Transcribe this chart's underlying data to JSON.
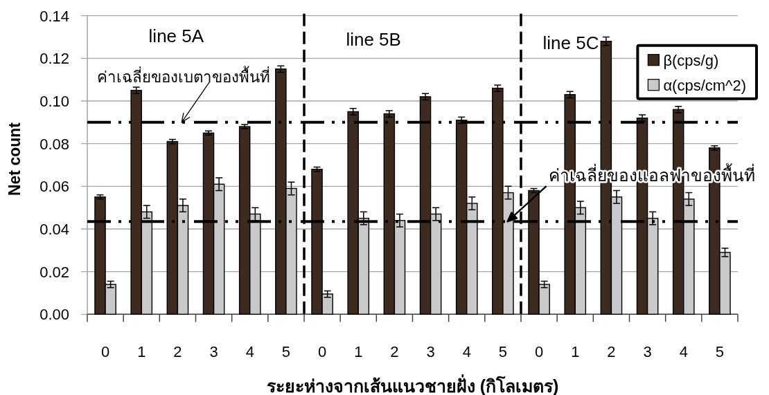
{
  "chart_data": {
    "type": "bar",
    "xlabel": "ระยะห่างจากเส้นแนวชายฝั่ง (กิโลเมตร)",
    "ylabel": "Net count",
    "categories": [
      "0",
      "1",
      "2",
      "3",
      "4",
      "5",
      "0",
      "1",
      "2",
      "3",
      "4",
      "5",
      "0",
      "1",
      "2",
      "3",
      "4",
      "5"
    ],
    "ylim": [
      0,
      0.14
    ],
    "yticks": [
      {
        "value": 0,
        "label": "0.00"
      },
      0.02,
      0.04,
      0.06,
      0.08,
      {
        "value": 0.1,
        "label": "0.10"
      },
      0.12,
      0.14
    ],
    "grid": "y",
    "legend": "top right",
    "series": [
      {
        "name": "β(cps/g)",
        "color": "#3d2b1f",
        "values": [
          0.055,
          0.105,
          0.081,
          0.085,
          0.088,
          0.115,
          0.068,
          0.095,
          0.094,
          0.102,
          0.091,
          0.106,
          0.058,
          0.103,
          0.128,
          0.092,
          0.096,
          0.078
        ],
        "errors": [
          0.001,
          0.0015,
          0.001,
          0.001,
          0.001,
          0.0015,
          0.001,
          0.0015,
          0.0015,
          0.0015,
          0.0015,
          0.0015,
          0.001,
          0.0015,
          0.002,
          0.0015,
          0.0015,
          0.001
        ]
      },
      {
        "name": "α(cps/cm^2)",
        "color": "#c8c9c9",
        "values": [
          0.014,
          0.048,
          0.051,
          0.061,
          0.047,
          0.059,
          0.0095,
          0.045,
          0.044,
          0.047,
          0.052,
          0.057,
          0.014,
          0.05,
          0.055,
          0.045,
          0.054,
          0.029
        ],
        "errors": [
          0.0015,
          0.003,
          0.003,
          0.003,
          0.003,
          0.003,
          0.0015,
          0.003,
          0.003,
          0.003,
          0.003,
          0.003,
          0.0015,
          0.003,
          0.003,
          0.003,
          0.003,
          0.002
        ]
      }
    ],
    "ref_lines": [
      {
        "axis": "y",
        "value": 0.09,
        "line_style": "dashed",
        "color": "#000000",
        "label": "ค่าเฉลี่ยของเบตาของพื้นที่"
      },
      {
        "axis": "y",
        "value": 0.0435,
        "line_style": "dashed",
        "color": "#000000",
        "label": "ค่าเฉลี่ยของแอลฟาของพื้นที่"
      }
    ],
    "annotations": [
      "line 5A",
      "line 5B",
      "line 5C"
    ]
  }
}
